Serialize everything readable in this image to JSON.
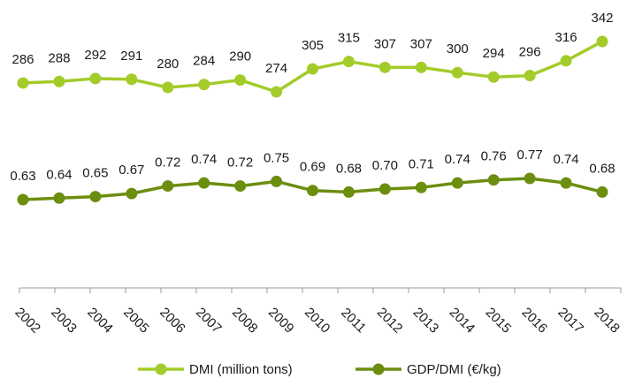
{
  "chart_data": {
    "type": "line",
    "categories": [
      "2002",
      "2003",
      "2004",
      "2005",
      "2006",
      "2007",
      "2008",
      "2009",
      "2010",
      "2011",
      "2012",
      "2013",
      "2014",
      "2015",
      "2016",
      "2017",
      "2018"
    ],
    "series": [
      {
        "name": "DMI (million tons)",
        "color": "#a3cc2a",
        "values": [
          286,
          288,
          292,
          291,
          280,
          284,
          290,
          274,
          305,
          315,
          307,
          307,
          300,
          294,
          296,
          316,
          342
        ],
        "labels": [
          "286",
          "288",
          "292",
          "291",
          "280",
          "284",
          "290",
          "274",
          "305",
          "315",
          "307",
          "307",
          "300",
          "294",
          "296",
          "316",
          "342"
        ]
      },
      {
        "name": "GDP/DMI (€/kg)",
        "color": "#6b8e0f",
        "values": [
          0.63,
          0.64,
          0.65,
          0.67,
          0.72,
          0.74,
          0.72,
          0.75,
          0.69,
          0.68,
          0.7,
          0.71,
          0.74,
          0.76,
          0.77,
          0.74,
          0.68
        ],
        "labels": [
          "0.63",
          "0.64",
          "0.65",
          "0.67",
          "0.72",
          "0.74",
          "0.72",
          "0.75",
          "0.69",
          "0.68",
          "0.70",
          "0.71",
          "0.74",
          "0.76",
          "0.77",
          "0.74",
          "0.68"
        ]
      }
    ],
    "legend_position": "bottom",
    "grid": false,
    "axes_visible": {
      "y": false,
      "x": true
    }
  }
}
